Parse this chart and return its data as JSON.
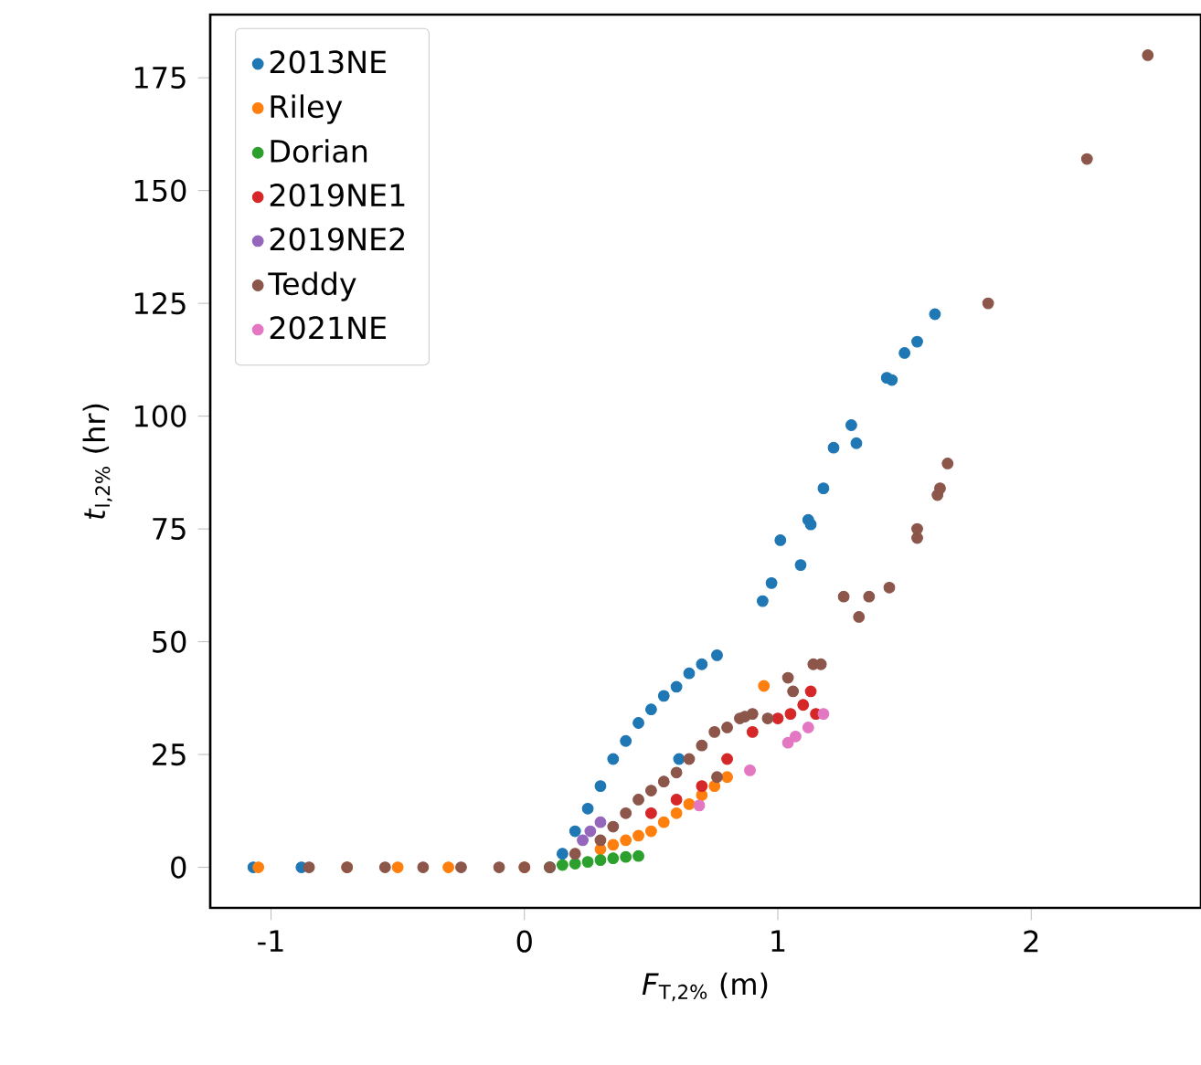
{
  "chart_data": {
    "type": "scatter",
    "xlabel": "*F*$_{T,2%}$ (m)",
    "ylabel": "*t*$_{l,2%}$ (hr)",
    "xlim": [
      -1.24,
      2.67
    ],
    "ylim": [
      -9,
      189
    ],
    "xticks": [
      -1,
      0,
      1,
      2
    ],
    "yticks": [
      0,
      25,
      50,
      75,
      100,
      125,
      150,
      175
    ],
    "legend": "top left",
    "series": [
      {
        "name": "2013NE",
        "color": "#1f77b4",
        "x": [
          -1.07,
          -0.88,
          0.1,
          0.15,
          0.2,
          0.25,
          0.3,
          0.35,
          0.4,
          0.45,
          0.5,
          0.55,
          0.6,
          0.61,
          0.65,
          0.7,
          0.76,
          0.94,
          0.975,
          1.01,
          1.09,
          1.12,
          1.13,
          1.18,
          1.22,
          1.29,
          1.31,
          1.43,
          1.45,
          1.5,
          1.55,
          1.62
        ],
        "values": [
          0,
          0,
          0,
          3,
          8,
          13,
          18,
          24,
          28,
          32,
          35,
          38,
          40,
          24,
          43,
          45,
          47,
          59,
          63,
          72.5,
          67,
          77,
          76,
          84,
          93,
          98,
          94,
          108.5,
          108,
          114,
          116.5,
          122.6
        ]
      },
      {
        "name": "Riley",
        "color": "#ff7f0e",
        "x": [
          -1.05,
          -0.7,
          -0.5,
          -0.3,
          0.0,
          0.3,
          0.35,
          0.4,
          0.45,
          0.5,
          0.55,
          0.6,
          0.65,
          0.7,
          0.75,
          0.8,
          0.945
        ],
        "values": [
          0,
          0,
          0,
          0,
          0,
          4,
          5,
          6,
          7,
          8,
          10,
          12,
          14,
          16,
          18,
          20,
          40.2
        ]
      },
      {
        "name": "Dorian",
        "color": "#2ca02c",
        "x": [
          0.1,
          0.15,
          0.2,
          0.25,
          0.3,
          0.35,
          0.4,
          0.45
        ],
        "values": [
          0,
          0.5,
          0.8,
          1.2,
          1.6,
          2,
          2.3,
          2.5
        ]
      },
      {
        "name": "2019NE1",
        "color": "#d62728",
        "x": [
          0.5,
          0.6,
          0.7,
          0.8,
          0.9,
          1.0,
          1.05,
          1.1,
          1.13,
          1.15
        ],
        "values": [
          12,
          15,
          18,
          24,
          30,
          33,
          34,
          36,
          39,
          34
        ]
      },
      {
        "name": "2019NE2",
        "color": "#9467bd",
        "x": [
          0.23,
          0.26,
          0.3
        ],
        "values": [
          6,
          8,
          10
        ]
      },
      {
        "name": "Teddy",
        "color": "#8c564b",
        "x": [
          -0.85,
          -0.7,
          -0.55,
          -0.4,
          -0.25,
          -0.1,
          0.0,
          0.1,
          0.2,
          0.3,
          0.35,
          0.4,
          0.45,
          0.5,
          0.55,
          0.6,
          0.65,
          0.7,
          0.75,
          0.76,
          0.8,
          0.85,
          0.87,
          0.9,
          0.96,
          1.04,
          1.06,
          1.14,
          1.17,
          1.26,
          1.32,
          1.36,
          1.44,
          1.55,
          1.55,
          1.63,
          1.64,
          1.67,
          1.83,
          2.22,
          2.46
        ],
        "values": [
          0,
          0,
          0,
          0,
          0,
          0,
          0,
          0,
          3,
          6,
          9,
          12,
          15,
          17,
          19,
          21,
          24,
          27,
          30,
          20,
          31,
          33,
          33.4,
          34,
          33,
          42,
          39,
          45,
          45,
          60,
          55.5,
          60,
          62,
          73,
          75,
          82.5,
          84,
          89.5,
          125,
          157,
          180
        ]
      },
      {
        "name": "2021NE",
        "color": "#e377c2",
        "x": [
          0.69,
          0.89,
          1.04,
          1.07,
          1.12,
          1.18
        ],
        "values": [
          13.7,
          21.5,
          27.6,
          29,
          31,
          34
        ]
      }
    ]
  }
}
